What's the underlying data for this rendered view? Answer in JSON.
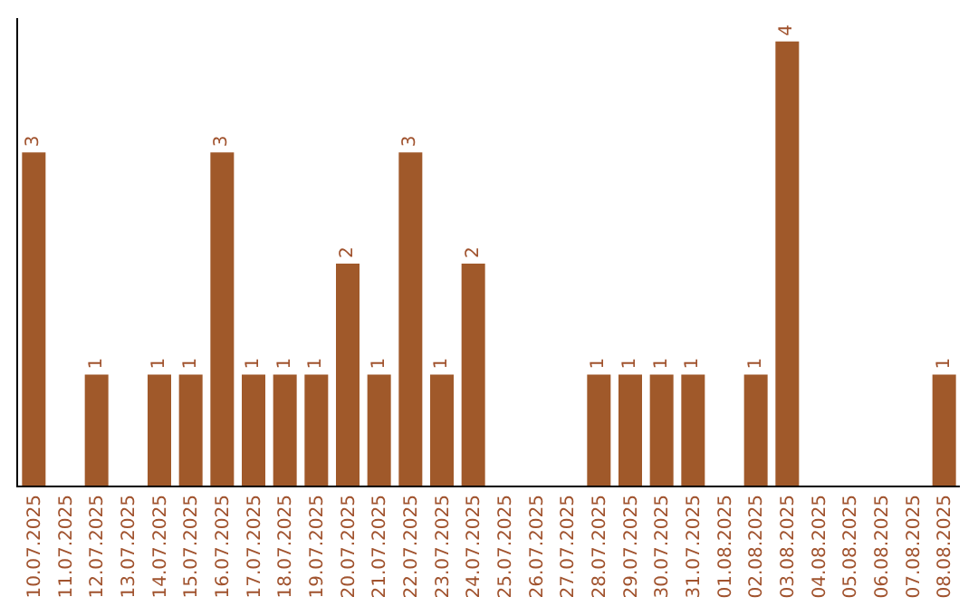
{
  "chart_data": {
    "type": "bar",
    "categories": [
      "10.07.2025",
      "11.07.2025",
      "12.07.2025",
      "13.07.2025",
      "14.07.2025",
      "15.07.2025",
      "16.07.2025",
      "17.07.2025",
      "18.07.2025",
      "19.07.2025",
      "20.07.2025",
      "21.07.2025",
      "22.07.2025",
      "23.07.2025",
      "24.07.2025",
      "25.07.2025",
      "26.07.2025",
      "27.07.2025",
      "28.07.2025",
      "29.07.2025",
      "30.07.2025",
      "31.07.2025",
      "01.08.2025",
      "02.08.2025",
      "03.08.2025",
      "04.08.2025",
      "05.08.2025",
      "06.08.2025",
      "07.08.2025",
      "08.08.2025"
    ],
    "values": [
      3,
      0,
      1,
      0,
      1,
      1,
      3,
      1,
      1,
      1,
      2,
      1,
      3,
      1,
      2,
      0,
      0,
      0,
      1,
      1,
      1,
      1,
      0,
      1,
      4,
      0,
      0,
      0,
      0,
      1
    ],
    "value_labels": [
      "3",
      null,
      "1",
      null,
      "1",
      "1",
      "3",
      "1",
      "1",
      "1",
      "2",
      "1",
      "3",
      "1",
      "2",
      null,
      null,
      null,
      "1",
      "1",
      "1",
      "1",
      null,
      "1",
      "4",
      null,
      null,
      null,
      null,
      "1"
    ],
    "color": "#a0592a"
  }
}
